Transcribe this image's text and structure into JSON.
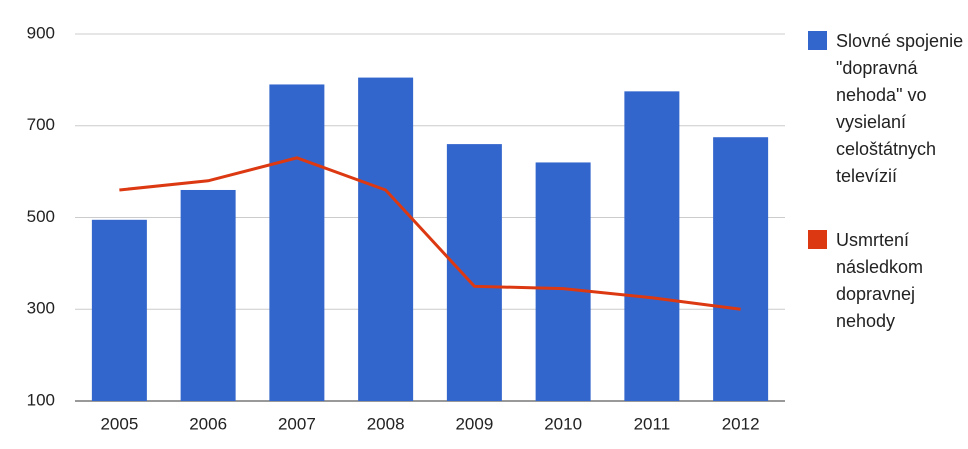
{
  "chart_data": {
    "type": "combo",
    "categories": [
      "2005",
      "2006",
      "2007",
      "2008",
      "2009",
      "2010",
      "2011",
      "2012"
    ],
    "series": [
      {
        "name": "Slovné spojenie \"dopravná nehoda\" vo vysielaní celoštátnych televízií",
        "type": "bar",
        "color": "#3366cc",
        "values": [
          495,
          560,
          790,
          805,
          660,
          620,
          775,
          675
        ]
      },
      {
        "name": "Usmrtení následkom dopravnej nehody",
        "type": "line",
        "color": "#dc3912",
        "values": [
          560,
          580,
          630,
          560,
          350,
          345,
          325,
          300
        ]
      }
    ],
    "ylim": [
      100,
      900
    ],
    "yticks": [
      100,
      300,
      500,
      700,
      900
    ],
    "grid": true,
    "legend": "right"
  }
}
